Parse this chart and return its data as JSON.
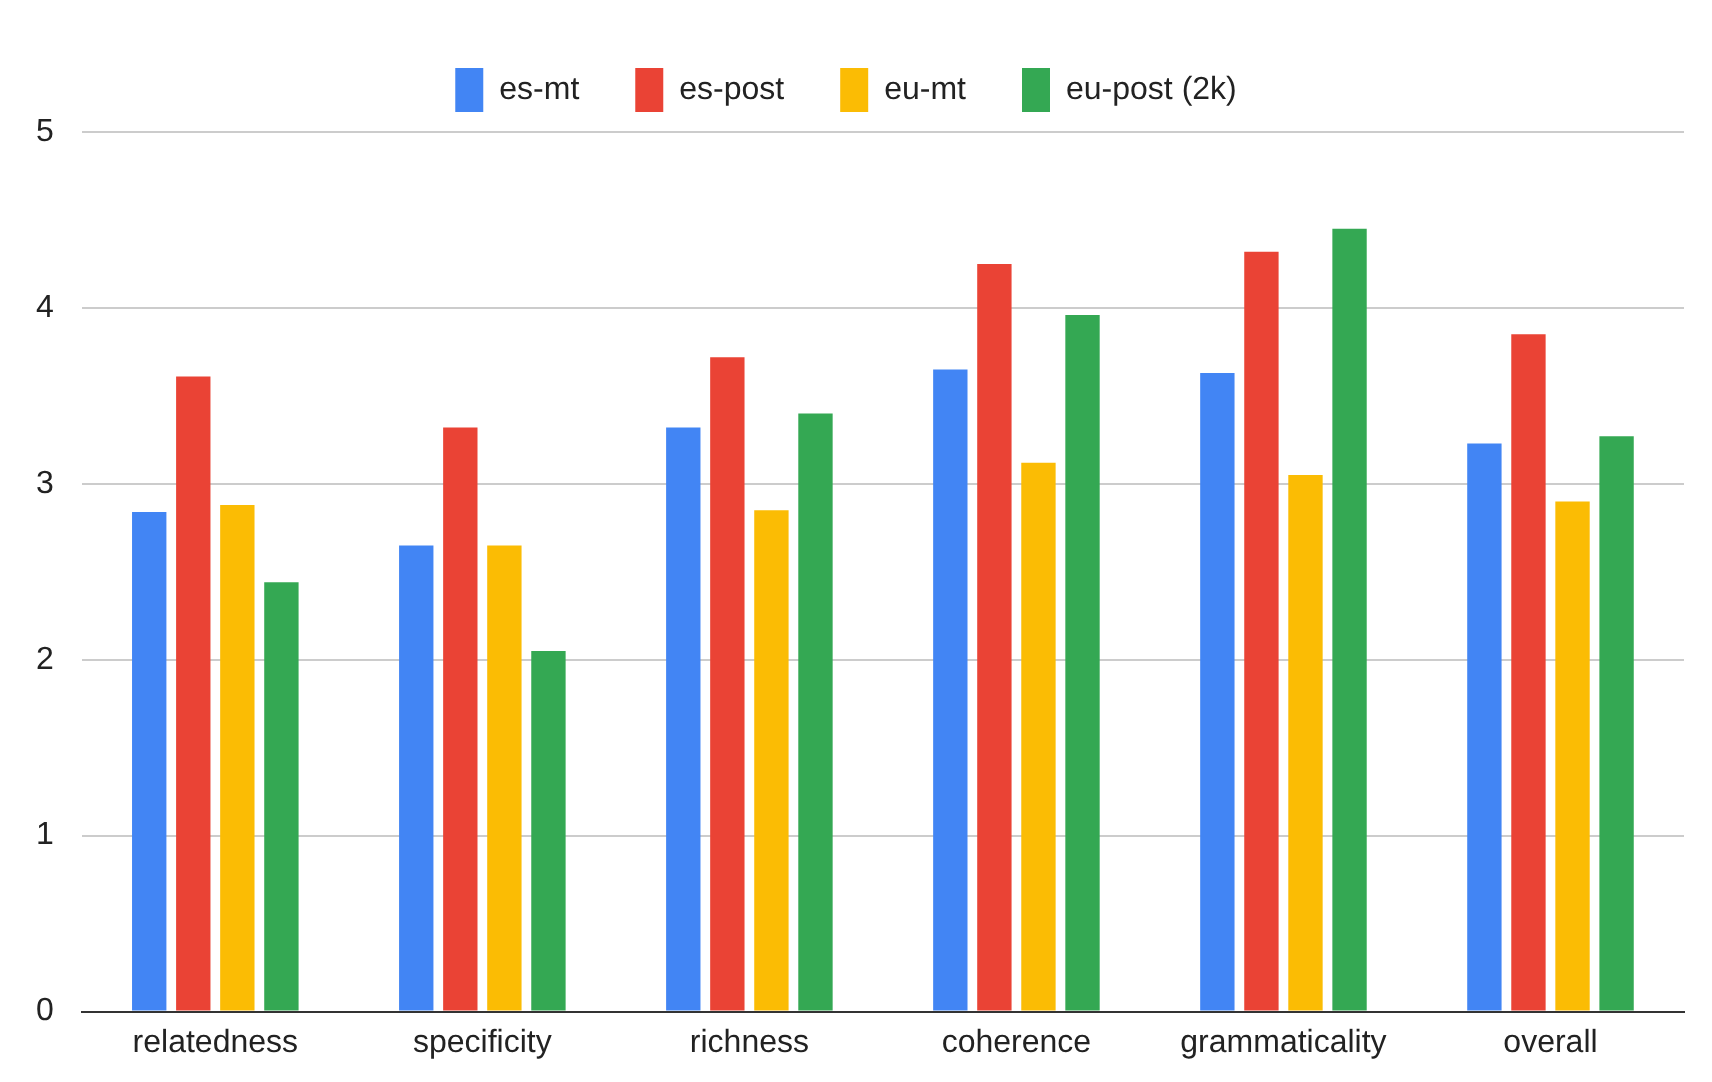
{
  "chart_data": {
    "type": "bar",
    "categories": [
      "relatedness",
      "specificity",
      "richness",
      "coherence",
      "grammaticality",
      "overall"
    ],
    "series": [
      {
        "name": "es-mt",
        "color": "#4285f4",
        "values": [
          2.84,
          2.65,
          3.32,
          3.65,
          3.63,
          3.23
        ]
      },
      {
        "name": "es-post",
        "color": "#ea4335",
        "values": [
          3.61,
          3.32,
          3.72,
          4.25,
          4.32,
          3.85
        ]
      },
      {
        "name": "eu-mt",
        "color": "#fbbc04",
        "values": [
          2.88,
          2.65,
          2.85,
          3.12,
          3.05,
          2.9
        ]
      },
      {
        "name": "eu-post (2k)",
        "color": "#34a853",
        "values": [
          2.44,
          2.05,
          3.4,
          3.96,
          4.45,
          3.27
        ]
      }
    ],
    "ylim": [
      0,
      5
    ],
    "yticks": [
      0,
      1,
      2,
      3,
      4,
      5
    ],
    "grid": "y",
    "legend": "top"
  }
}
